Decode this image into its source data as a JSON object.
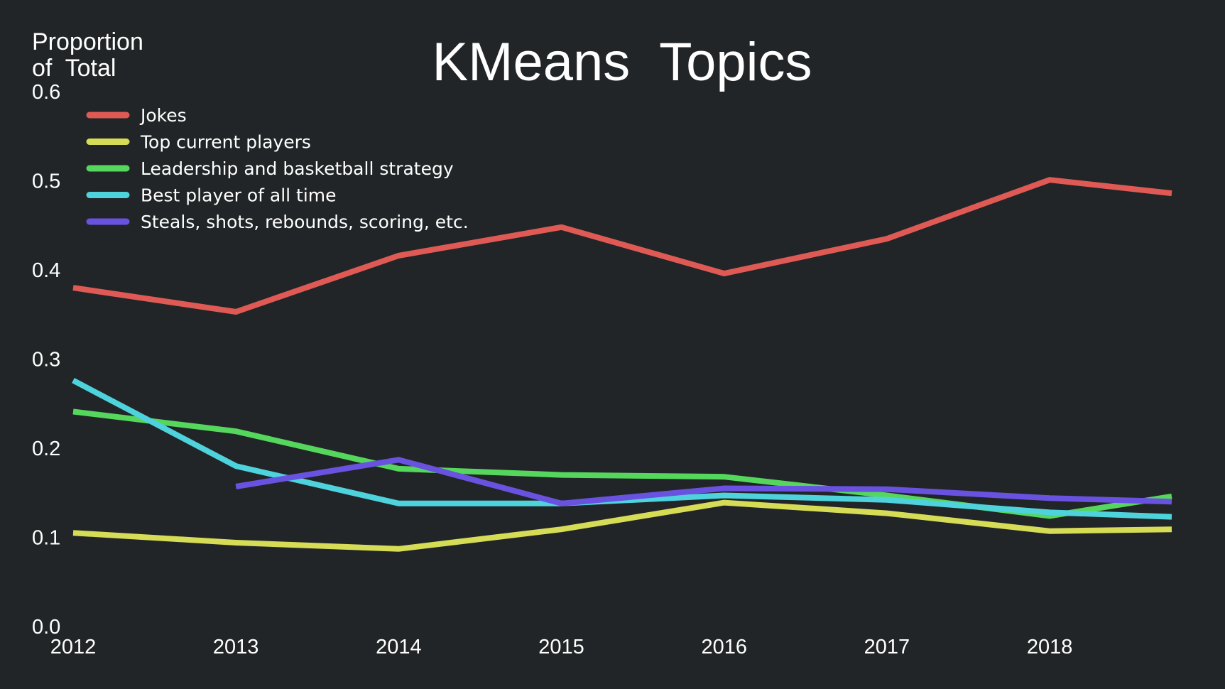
{
  "chart_data": {
    "type": "line",
    "title": "KMeans  Topics",
    "ylabel_lines": [
      "Proportion",
      "of  Total"
    ],
    "xlabel": "",
    "x": [
      2012,
      2013,
      2014,
      2015,
      2016,
      2017,
      2018,
      2018.75
    ],
    "xticks": [
      "2012",
      "2013",
      "2014",
      "2015",
      "2016",
      "2017",
      "2018"
    ],
    "yticks": [
      "0.0",
      "0.1",
      "0.2",
      "0.3",
      "0.4",
      "0.5",
      "0.6"
    ],
    "xlim": [
      2012,
      2018.75
    ],
    "ylim": [
      0,
      0.6
    ],
    "grid": false,
    "legend_position": "top-left",
    "background_color": "#212527",
    "series": [
      {
        "name": "Jokes",
        "color": "#e05a55",
        "values": [
          0.38,
          0.353,
          0.416,
          0.448,
          0.396,
          0.435,
          0.501,
          0.486
        ]
      },
      {
        "name": "Top current players",
        "color": "#d6dc55",
        "values": [
          0.105,
          0.094,
          0.087,
          0.109,
          0.139,
          0.127,
          0.107,
          0.109
        ]
      },
      {
        "name": "Leadership and basketball strategy",
        "color": "#55d65c",
        "values": [
          0.241,
          0.219,
          0.177,
          0.17,
          0.168,
          0.147,
          0.124,
          0.146
        ]
      },
      {
        "name": "Best player of all time",
        "color": "#4ed3dd",
        "values": [
          0.276,
          0.18,
          0.138,
          0.138,
          0.147,
          0.142,
          0.128,
          0.123
        ]
      },
      {
        "name": "Steals, shots, rebounds, scoring, etc.",
        "color": "#6a52e0",
        "values": [
          null,
          0.157,
          0.187,
          0.138,
          0.155,
          0.154,
          0.144,
          0.14
        ]
      }
    ]
  }
}
